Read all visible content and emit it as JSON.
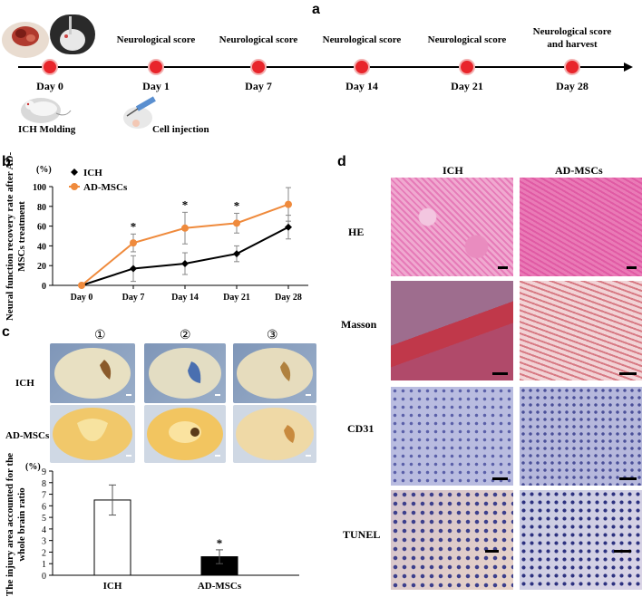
{
  "panel_a": {
    "letter": "a",
    "timeline": [
      {
        "day": "Day 0",
        "top": "",
        "bottom": "ICH Molding"
      },
      {
        "day": "Day 1",
        "top": "Neurological score",
        "bottom": "Cell injection"
      },
      {
        "day": "Day 7",
        "top": "Neurological score",
        "bottom": ""
      },
      {
        "day": "Day 14",
        "top": "Neurological score",
        "bottom": ""
      },
      {
        "day": "Day 21",
        "top": "Neurological score",
        "bottom": ""
      },
      {
        "day": "Day 28",
        "top": "Neurological score and harvest",
        "bottom": ""
      }
    ],
    "colors": {
      "dot": "#e8252b",
      "dot_edge": "#f0a0a0",
      "axis": "#000000"
    }
  },
  "panel_b": {
    "letter": "b",
    "chart_data": {
      "type": "line",
      "title": "",
      "ylabel": "Neural function recovery rate after AD-MSCs treatment",
      "yunit": "(%)",
      "xlabel": "",
      "categories": [
        "Day 0",
        "Day 7",
        "Day 14",
        "Day 21",
        "Day 28"
      ],
      "ylim": [
        0,
        100
      ],
      "yticks": [
        "0",
        "20",
        "40",
        "60",
        "80",
        "100"
      ],
      "series": [
        {
          "name": "ICH",
          "color": "#000000",
          "marker": "diamond",
          "values": [
            0,
            17,
            22,
            32,
            59
          ],
          "errors": [
            0,
            13,
            11,
            8,
            12
          ]
        },
        {
          "name": "AD-MSCs",
          "color": "#ef8a3c",
          "marker": "circle",
          "values": [
            0,
            43,
            58,
            63,
            82
          ],
          "errors": [
            0,
            9,
            16,
            10,
            17
          ]
        }
      ],
      "significance": [
        {
          "category": "Day 7",
          "label": "*"
        },
        {
          "category": "Day 14",
          "label": "*"
        },
        {
          "category": "Day 21",
          "label": "*"
        }
      ],
      "legend_position": "top-left"
    }
  },
  "panel_c": {
    "letter": "c",
    "column_numbers": [
      "①",
      "②",
      "③"
    ],
    "row_labels": [
      "ICH",
      "AD-MSCs"
    ],
    "chart_data": {
      "type": "bar",
      "title": "",
      "ylabel": "The injury area accounted for the whole brain ratio",
      "yunit": "(%)",
      "categories": [
        "ICH",
        "AD-MSCs"
      ],
      "values": [
        6.5,
        1.6
      ],
      "errors": [
        1.3,
        0.6
      ],
      "ylim": [
        0,
        9
      ],
      "yticks": [
        "0",
        "1",
        "2",
        "3",
        "4",
        "5",
        "6",
        "7",
        "8",
        "9"
      ],
      "bar_fill": [
        "#ffffff",
        "#000000"
      ],
      "significance": [
        {
          "category": "AD-MSCs",
          "label": "*"
        }
      ]
    }
  },
  "panel_d": {
    "letter": "d",
    "column_labels": [
      "ICH",
      "AD-MSCs"
    ],
    "row_labels": [
      "HE",
      "Masson",
      "CD31",
      "TUNEL"
    ]
  }
}
